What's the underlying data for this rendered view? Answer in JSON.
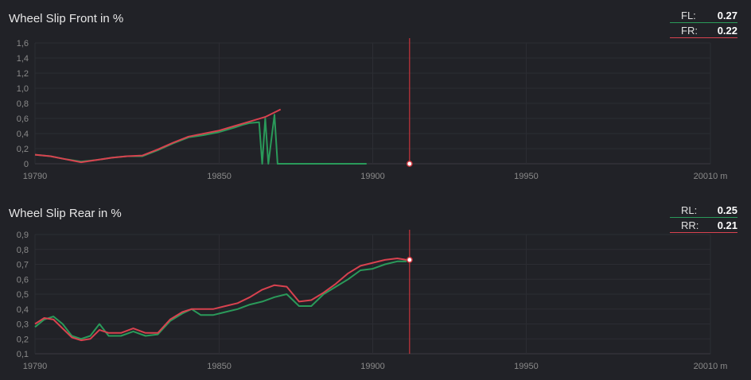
{
  "colors": {
    "green": "#2a9a5a",
    "red": "#d8424f",
    "cursor": "#c8343c",
    "grid": "#2c2d33",
    "axis": "#3a3b42",
    "background": "#212227"
  },
  "cursor_x": 19912,
  "chart_data": [
    {
      "type": "line",
      "title": "Wheel Slip Front in %",
      "x_ticks": [
        19790,
        19850,
        19900,
        19950
      ],
      "x_tick_last": "20010 m",
      "xlim": [
        19790,
        20010
      ],
      "ylim": [
        0,
        1.6
      ],
      "y_ticks": [
        "0",
        "0,2",
        "0,4",
        "0,6",
        "0,8",
        "1,0",
        "1,2",
        "1,4",
        "1,6"
      ],
      "y_tick_values": [
        0,
        0.2,
        0.4,
        0.6,
        0.8,
        1.0,
        1.2,
        1.4,
        1.6
      ],
      "grid": true,
      "legend_position": "top-right",
      "legend": [
        {
          "label": "FL:",
          "value": "0.27",
          "color": "green"
        },
        {
          "label": "FR:",
          "value": "0.22",
          "color": "red"
        }
      ],
      "cursor_marker": {
        "x": 19912,
        "y": 0
      },
      "series": [
        {
          "color": "green",
          "points": [
            [
              19790,
              0.12
            ],
            [
              19795,
              0.1
            ],
            [
              19800,
              0.06
            ],
            [
              19805,
              0.03
            ],
            [
              19810,
              0.05
            ],
            [
              19815,
              0.08
            ],
            [
              19820,
              0.1
            ],
            [
              19825,
              0.1
            ],
            [
              19830,
              0.18
            ],
            [
              19835,
              0.27
            ],
            [
              19840,
              0.35
            ],
            [
              19845,
              0.38
            ],
            [
              19850,
              0.42
            ],
            [
              19855,
              0.48
            ],
            [
              19858,
              0.52
            ],
            [
              19860,
              0.54
            ],
            [
              19863,
              0.55
            ],
            [
              19864,
              0.0
            ],
            [
              19865,
              0.6
            ],
            [
              19866,
              0.0
            ],
            [
              19868,
              0.65
            ],
            [
              19869,
              0.0
            ],
            [
              19874,
              0.0
            ],
            [
              19877,
              0.0
            ],
            [
              19880,
              0.0
            ],
            [
              19882,
              0.0
            ],
            [
              19883,
              0.0
            ],
            [
              19884,
              0.0
            ],
            [
              19885,
              0.0
            ],
            [
              19886,
              0.0
            ],
            [
              19887,
              0.0
            ],
            [
              19888,
              0.0
            ],
            [
              19889,
              0.0
            ],
            [
              19890,
              0.0
            ],
            [
              19891,
              0.0
            ],
            [
              19892,
              0.0
            ],
            [
              19893,
              0.0
            ],
            [
              19894,
              0.0
            ],
            [
              19895,
              0.0
            ],
            [
              19896,
              0.0
            ],
            [
              19897,
              0.0
            ],
            [
              19898,
              0.0
            ]
          ]
        },
        {
          "color": "red",
          "points": [
            [
              19790,
              0.12
            ],
            [
              19795,
              0.1
            ],
            [
              19800,
              0.06
            ],
            [
              19805,
              0.02
            ],
            [
              19810,
              0.05
            ],
            [
              19815,
              0.08
            ],
            [
              19820,
              0.1
            ],
            [
              19825,
              0.11
            ],
            [
              19830,
              0.19
            ],
            [
              19835,
              0.28
            ],
            [
              19840,
              0.36
            ],
            [
              19845,
              0.4
            ],
            [
              19850,
              0.44
            ],
            [
              19855,
              0.5
            ],
            [
              19860,
              0.56
            ],
            [
              19865,
              0.62
            ],
            [
              19870,
              0.72
            ]
          ]
        }
      ]
    },
    {
      "type": "line",
      "title": "Wheel Slip Rear in %",
      "x_ticks": [
        19790,
        19850,
        19900,
        19950
      ],
      "x_tick_last": "20010 m",
      "xlim": [
        19790,
        20010
      ],
      "ylim": [
        0.1,
        0.9
      ],
      "y_ticks": [
        "0,1",
        "0,2",
        "0,3",
        "0,4",
        "0,5",
        "0,6",
        "0,7",
        "0,8",
        "0,9"
      ],
      "y_tick_values": [
        0.1,
        0.2,
        0.3,
        0.4,
        0.5,
        0.6,
        0.7,
        0.8,
        0.9
      ],
      "grid": true,
      "legend_position": "top-right",
      "legend": [
        {
          "label": "RL:",
          "value": "0.25",
          "color": "green"
        },
        {
          "label": "RR:",
          "value": "0.21",
          "color": "red"
        }
      ],
      "cursor_marker": {
        "x": 19912,
        "y": 0.73
      },
      "series": [
        {
          "color": "green",
          "points": [
            [
              19790,
              0.28
            ],
            [
              19793,
              0.33
            ],
            [
              19796,
              0.35
            ],
            [
              19799,
              0.3
            ],
            [
              19802,
              0.22
            ],
            [
              19805,
              0.2
            ],
            [
              19808,
              0.22
            ],
            [
              19811,
              0.3
            ],
            [
              19814,
              0.22
            ],
            [
              19818,
              0.22
            ],
            [
              19822,
              0.25
            ],
            [
              19826,
              0.22
            ],
            [
              19830,
              0.23
            ],
            [
              19834,
              0.32
            ],
            [
              19838,
              0.37
            ],
            [
              19841,
              0.4
            ],
            [
              19844,
              0.36
            ],
            [
              19848,
              0.36
            ],
            [
              19852,
              0.38
            ],
            [
              19856,
              0.4
            ],
            [
              19860,
              0.43
            ],
            [
              19864,
              0.45
            ],
            [
              19868,
              0.48
            ],
            [
              19872,
              0.5
            ],
            [
              19876,
              0.42
            ],
            [
              19880,
              0.42
            ],
            [
              19884,
              0.5
            ],
            [
              19888,
              0.55
            ],
            [
              19892,
              0.6
            ],
            [
              19896,
              0.66
            ],
            [
              19900,
              0.67
            ],
            [
              19904,
              0.7
            ],
            [
              19908,
              0.72
            ],
            [
              19911,
              0.72
            ]
          ]
        },
        {
          "color": "red",
          "points": [
            [
              19790,
              0.3
            ],
            [
              19793,
              0.34
            ],
            [
              19796,
              0.33
            ],
            [
              19799,
              0.27
            ],
            [
              19802,
              0.21
            ],
            [
              19805,
              0.19
            ],
            [
              19808,
              0.2
            ],
            [
              19811,
              0.26
            ],
            [
              19814,
              0.24
            ],
            [
              19818,
              0.24
            ],
            [
              19822,
              0.27
            ],
            [
              19826,
              0.24
            ],
            [
              19830,
              0.24
            ],
            [
              19834,
              0.33
            ],
            [
              19838,
              0.38
            ],
            [
              19841,
              0.4
            ],
            [
              19844,
              0.4
            ],
            [
              19848,
              0.4
            ],
            [
              19852,
              0.42
            ],
            [
              19856,
              0.44
            ],
            [
              19860,
              0.48
            ],
            [
              19864,
              0.53
            ],
            [
              19868,
              0.56
            ],
            [
              19872,
              0.55
            ],
            [
              19876,
              0.45
            ],
            [
              19880,
              0.46
            ],
            [
              19884,
              0.51
            ],
            [
              19888,
              0.57
            ],
            [
              19892,
              0.64
            ],
            [
              19896,
              0.69
            ],
            [
              19900,
              0.71
            ],
            [
              19904,
              0.73
            ],
            [
              19908,
              0.74
            ],
            [
              19911,
              0.73
            ]
          ]
        }
      ]
    }
  ]
}
